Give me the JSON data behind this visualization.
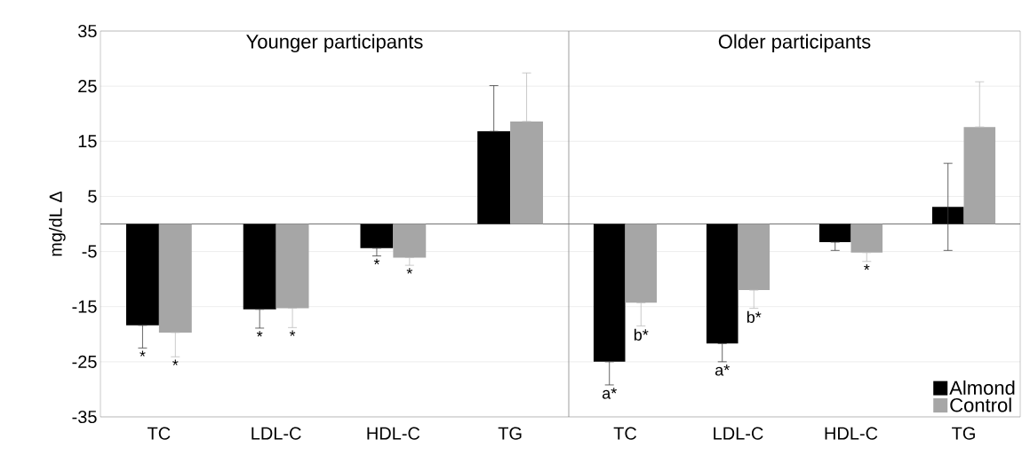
{
  "chart_data": [
    {
      "type": "bar",
      "title": "Younger participants",
      "ylabel": "mg/dL Δ",
      "categories": [
        "TC",
        "LDL-C",
        "HDL-C",
        "TG"
      ],
      "series": [
        {
          "color": "#000000",
          "values": [
            -18.4,
            -15.5,
            -4.4,
            16.8
          ],
          "errors": [
            [
              -22.5,
              -18.4
            ],
            [
              -18.9,
              -15.5
            ],
            [
              -5.8,
              -4.4
            ],
            [
              16.8,
              25.1
            ]
          ],
          "value_labels": [
            "*",
            "*",
            "*",
            null
          ]
        },
        {
          "color": "#a6a6a6",
          "values": [
            -19.7,
            -15.3,
            -6.1,
            18.6
          ],
          "errors": [
            [
              -24.1,
              -19.7
            ],
            [
              -18.8,
              -15.3
            ],
            [
              -7.5,
              -6.1
            ],
            [
              18.6,
              27.4
            ]
          ],
          "value_labels": [
            "*",
            "*",
            "*",
            null
          ]
        }
      ],
      "ylim": [
        -35,
        35
      ],
      "yticks": [
        -35,
        -25,
        -15,
        -5,
        5,
        15,
        25,
        35
      ],
      "grid": "y"
    },
    {
      "type": "bar",
      "title": "Older participants",
      "categories": [
        "TC",
        "LDL-C",
        "HDL-C",
        "TG"
      ],
      "series": [
        {
          "name": "Almond",
          "color": "#000000",
          "values": [
            -25.0,
            -21.7,
            -3.3,
            3.1
          ],
          "errors": [
            [
              -29.2,
              -25.0
            ],
            [
              -25.0,
              -21.7
            ],
            [
              -4.8,
              -3.3
            ],
            [
              -4.8,
              11.0
            ]
          ],
          "value_labels": [
            "a*",
            "a*",
            null,
            null
          ]
        },
        {
          "name": "Control",
          "color": "#a6a6a6",
          "values": [
            -14.3,
            -12.0,
            -5.2,
            17.6
          ],
          "errors": [
            [
              -18.5,
              -14.3
            ],
            [
              -15.3,
              -12.0
            ],
            [
              -6.8,
              -5.2
            ],
            [
              17.6,
              25.8
            ]
          ],
          "value_labels": [
            "b*",
            "b*",
            "*",
            null
          ]
        }
      ],
      "ylim": [
        -35,
        35
      ],
      "yticks": [
        -35,
        -25,
        -15,
        -5,
        5,
        15,
        25,
        35
      ],
      "grid": "y",
      "tick_labels": "x",
      "legend": "bottom right"
    }
  ]
}
